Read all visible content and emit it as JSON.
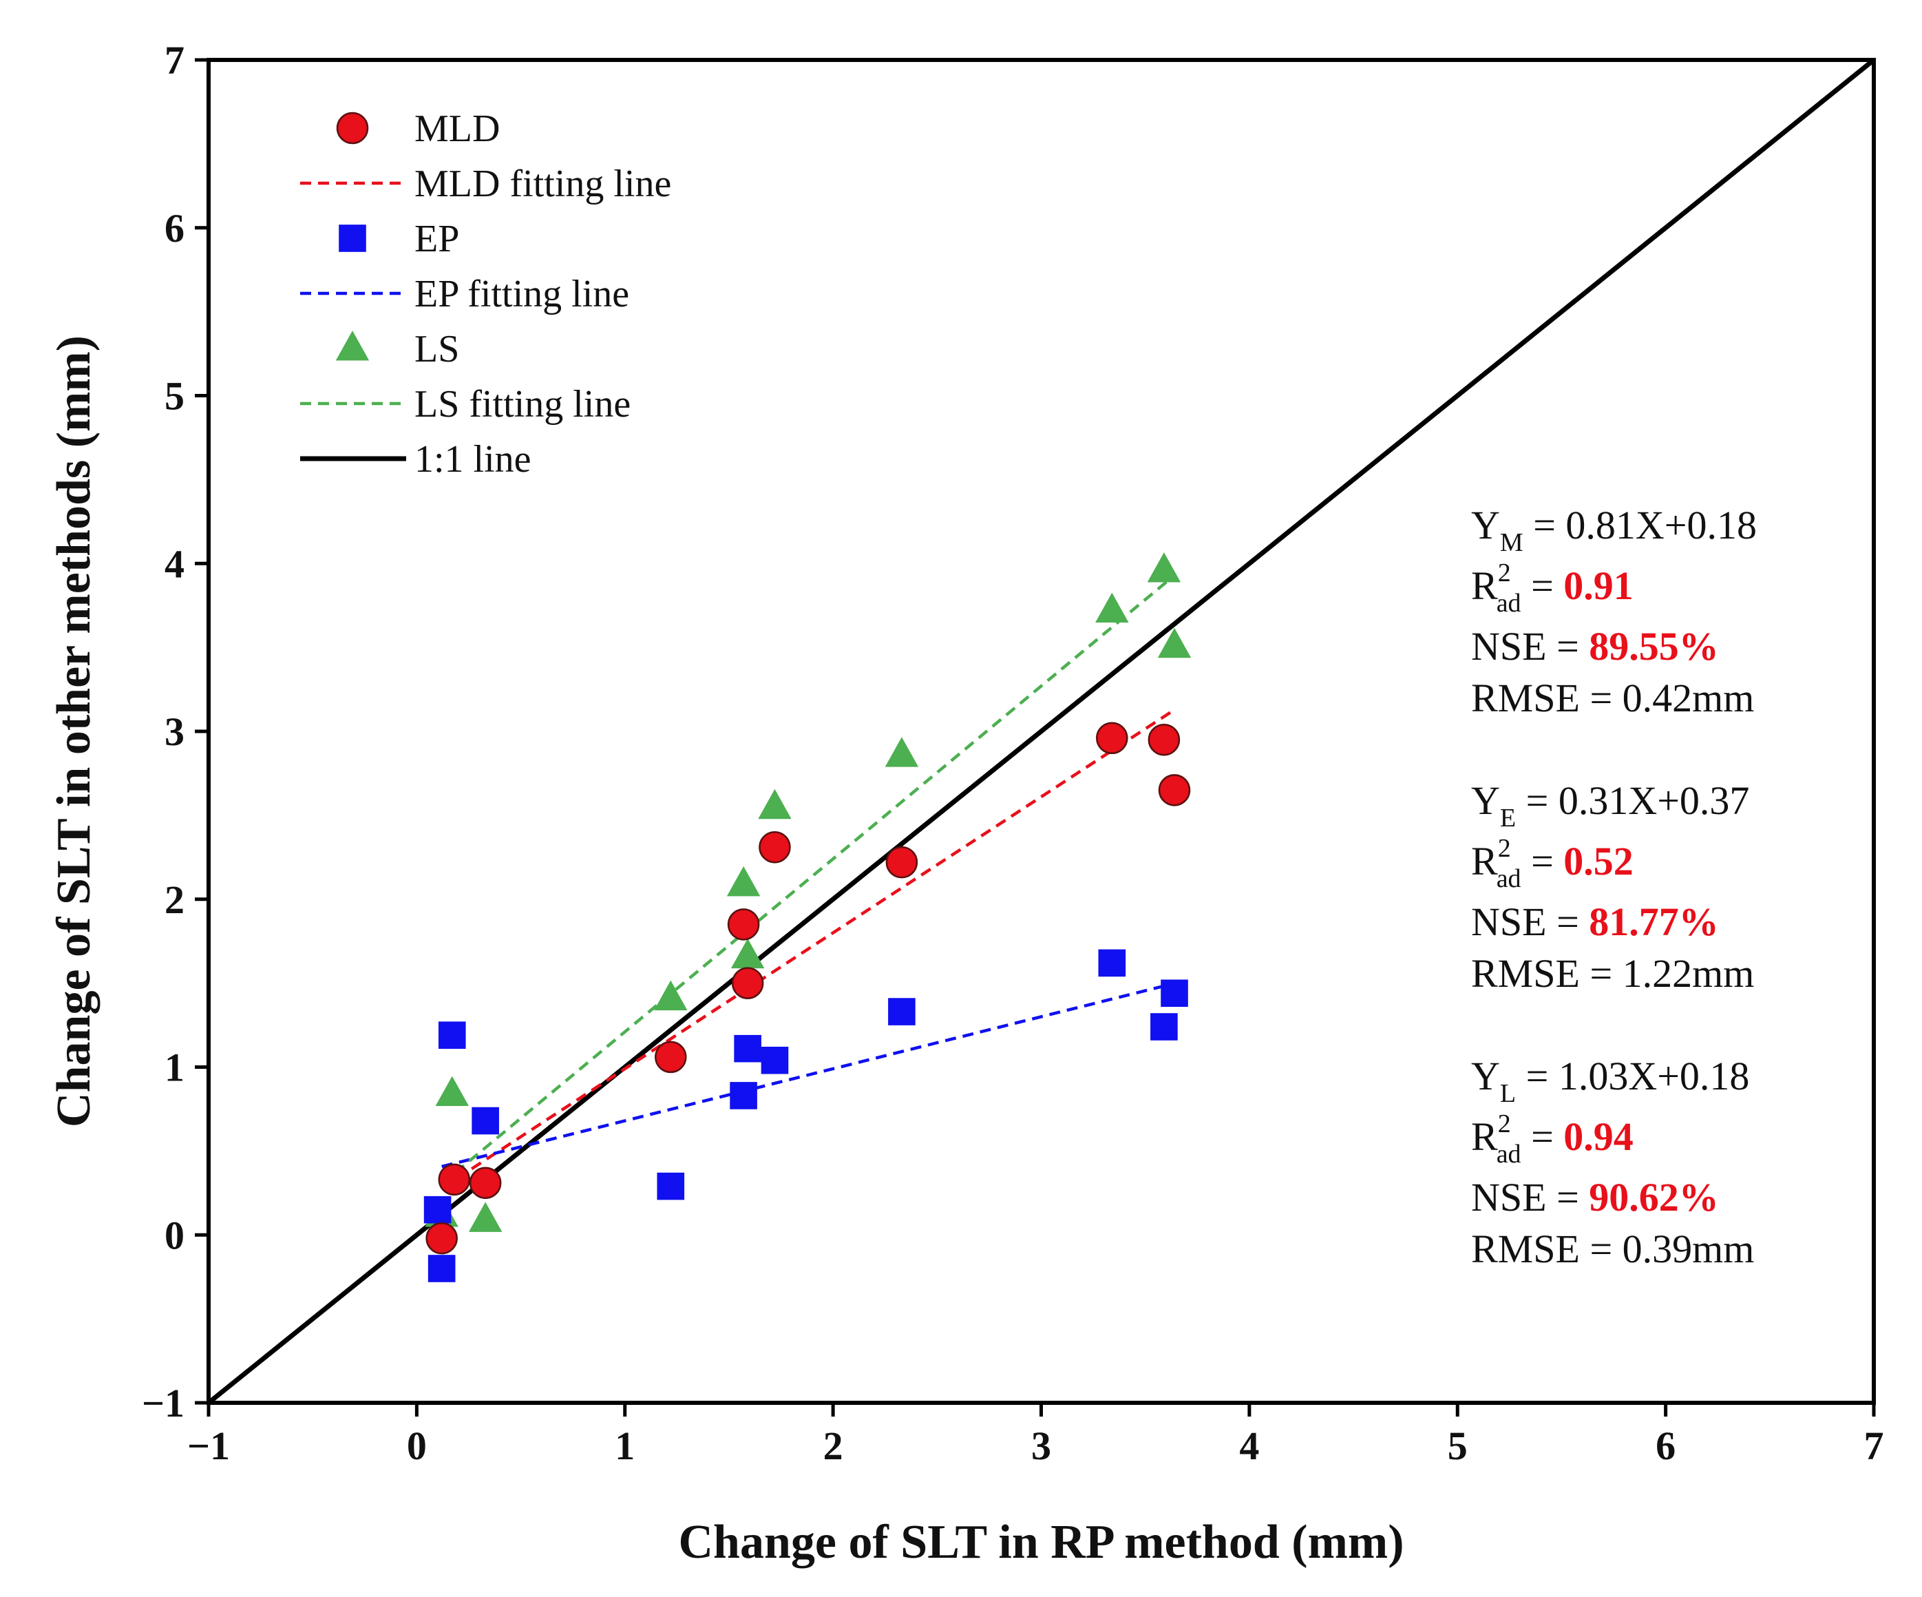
{
  "chart_data": {
    "type": "scatter",
    "xlabel": "Change of SLT in RP method (mm)",
    "ylabel": "Change of SLT in other methods (mm)",
    "xlim": [
      -1,
      7
    ],
    "ylim": [
      -1,
      7
    ],
    "x_ticks": [
      "−1",
      "0",
      "1",
      "2",
      "3",
      "4",
      "5",
      "6",
      "7"
    ],
    "y_ticks": [
      "−1",
      "0",
      "1",
      "2",
      "3",
      "4",
      "5",
      "6",
      "7"
    ],
    "grid": false,
    "legend_position": "top-left",
    "series": [
      {
        "name": "MLD",
        "marker": "circle",
        "color": "#e8101a",
        "points": [
          [
            0.12,
            -0.02
          ],
          [
            0.18,
            0.33
          ],
          [
            0.33,
            0.31
          ],
          [
            1.22,
            1.06
          ],
          [
            1.57,
            1.85
          ],
          [
            1.59,
            1.5
          ],
          [
            1.72,
            2.31
          ],
          [
            2.33,
            2.22
          ],
          [
            3.34,
            2.96
          ],
          [
            3.59,
            2.95
          ],
          [
            3.64,
            2.65
          ]
        ]
      },
      {
        "name": "EP",
        "marker": "square",
        "color": "#1010f0",
        "points": [
          [
            0.1,
            0.15
          ],
          [
            0.12,
            -0.2
          ],
          [
            0.17,
            1.19
          ],
          [
            0.33,
            0.68
          ],
          [
            1.22,
            0.29
          ],
          [
            1.57,
            0.83
          ],
          [
            1.59,
            1.11
          ],
          [
            1.72,
            1.04
          ],
          [
            2.33,
            1.33
          ],
          [
            3.34,
            1.62
          ],
          [
            3.59,
            1.24
          ],
          [
            3.64,
            1.44
          ]
        ]
      },
      {
        "name": "LS",
        "marker": "triangle",
        "color": "#4caf50",
        "points": [
          [
            0.12,
            0.12
          ],
          [
            0.17,
            0.84
          ],
          [
            0.33,
            0.09
          ],
          [
            1.22,
            1.41
          ],
          [
            1.57,
            2.09
          ],
          [
            1.59,
            1.66
          ],
          [
            1.72,
            2.55
          ],
          [
            2.33,
            2.86
          ],
          [
            3.34,
            3.72
          ],
          [
            3.59,
            3.96
          ],
          [
            3.64,
            3.51
          ]
        ]
      }
    ],
    "fit_lines": [
      {
        "name": "MLD fitting line",
        "color": "#e8101a",
        "slope": 0.81,
        "intercept": 0.18,
        "x_range": [
          0.12,
          3.64
        ]
      },
      {
        "name": "EP fitting line",
        "color": "#1010f0",
        "slope": 0.31,
        "intercept": 0.37,
        "x_range": [
          0.12,
          3.64
        ]
      },
      {
        "name": "LS fitting line",
        "color": "#4caf50",
        "slope": 1.03,
        "intercept": 0.18,
        "x_range": [
          0.12,
          3.64
        ]
      }
    ],
    "reference_line": {
      "name": "1:1 line",
      "color": "#000000",
      "slope": 1,
      "intercept": 0
    },
    "legend": [
      {
        "label": "MLD",
        "kind": "circle",
        "color": "#e8101a"
      },
      {
        "label": "MLD fitting line",
        "kind": "dashed",
        "color": "#e8101a"
      },
      {
        "label": "EP",
        "kind": "square",
        "color": "#1010f0"
      },
      {
        "label": "EP fitting line",
        "kind": "dashed",
        "color": "#1010f0"
      },
      {
        "label": "LS",
        "kind": "triangle",
        "color": "#4caf50"
      },
      {
        "label": "LS fitting line",
        "kind": "dashed",
        "color": "#4caf50"
      },
      {
        "label": "1:1 line",
        "kind": "solid",
        "color": "#000000"
      }
    ],
    "annotations": [
      {
        "y_main": "Y",
        "y_sub": "M",
        "equation": " = 0.81X+0.18",
        "r_main": "R",
        "r_sup": "2",
        "r_sub": "ad",
        "r_eq": " = ",
        "r_value": "0.91",
        "nse_label": "NSE = ",
        "nse_value": "89.55%",
        "rmse": "RMSE = 0.42mm"
      },
      {
        "y_main": "Y",
        "y_sub": "E",
        "equation": " = 0.31X+0.37",
        "r_main": "R",
        "r_sup": "2",
        "r_sub": "ad",
        "r_eq": " = ",
        "r_value": "0.52",
        "nse_label": "NSE = ",
        "nse_value": "81.77%",
        "rmse": "RMSE = 1.22mm"
      },
      {
        "y_main": "Y",
        "y_sub": "L",
        "equation": " = 1.03X+0.18",
        "r_main": "R",
        "r_sup": "2",
        "r_sub": "ad",
        "r_eq": " = ",
        "r_value": "0.94",
        "nse_label": "NSE = ",
        "nse_value": "90.62%",
        "rmse": "RMSE = 0.39mm"
      }
    ]
  }
}
